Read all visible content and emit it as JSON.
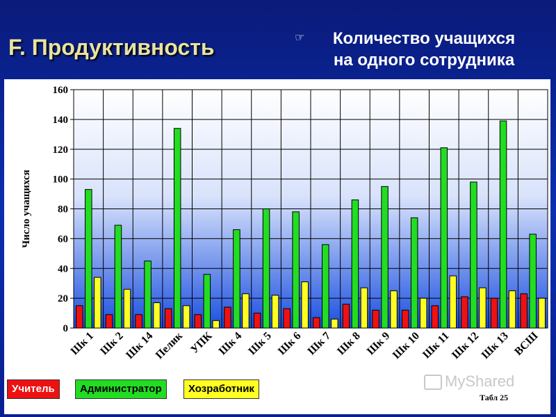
{
  "slide": {
    "title": "F. Продуктивность",
    "subtitle_line1": "Количество учащихся",
    "subtitle_line2": "на одного сотрудника",
    "table_label": "Табл 25",
    "watermark": "MyShared"
  },
  "colors": {
    "teacher": "#ee1111",
    "admin": "#22dd22",
    "support": "#ffff22"
  },
  "chart_data": {
    "type": "bar",
    "ylabel": "Число учащихся",
    "xlabel": "",
    "ylim": [
      0,
      160
    ],
    "yticks": [
      0,
      20,
      40,
      60,
      80,
      100,
      120,
      140,
      160
    ],
    "grid": true,
    "legend_position": "bottom-left",
    "categories": [
      "Шк 1",
      "Шк 2",
      "Шк 14",
      "Пелик",
      "УПК",
      "Шк 4",
      "Шк 5",
      "Шк 6",
      "Шк 7",
      "Шк 8",
      "Шк 9",
      "Шк 10",
      "Шк 11",
      "Шк 12",
      "Шк 13",
      "ВСШ"
    ],
    "series": [
      {
        "name": "Учитель",
        "color": "#ee1111",
        "values": [
          15,
          9,
          9,
          13,
          9,
          14,
          10,
          13,
          7,
          16,
          12,
          12,
          15,
          21,
          20,
          23
        ]
      },
      {
        "name": "Администратор",
        "color": "#22dd22",
        "values": [
          93,
          69,
          45,
          134,
          36,
          66,
          80,
          78,
          56,
          86,
          95,
          74,
          121,
          98,
          139,
          63
        ]
      },
      {
        "name": "Хозработник",
        "color": "#ffff22",
        "values": [
          34,
          26,
          17,
          15,
          5,
          23,
          22,
          31,
          6,
          27,
          25,
          20,
          35,
          27,
          25,
          20
        ]
      }
    ]
  }
}
